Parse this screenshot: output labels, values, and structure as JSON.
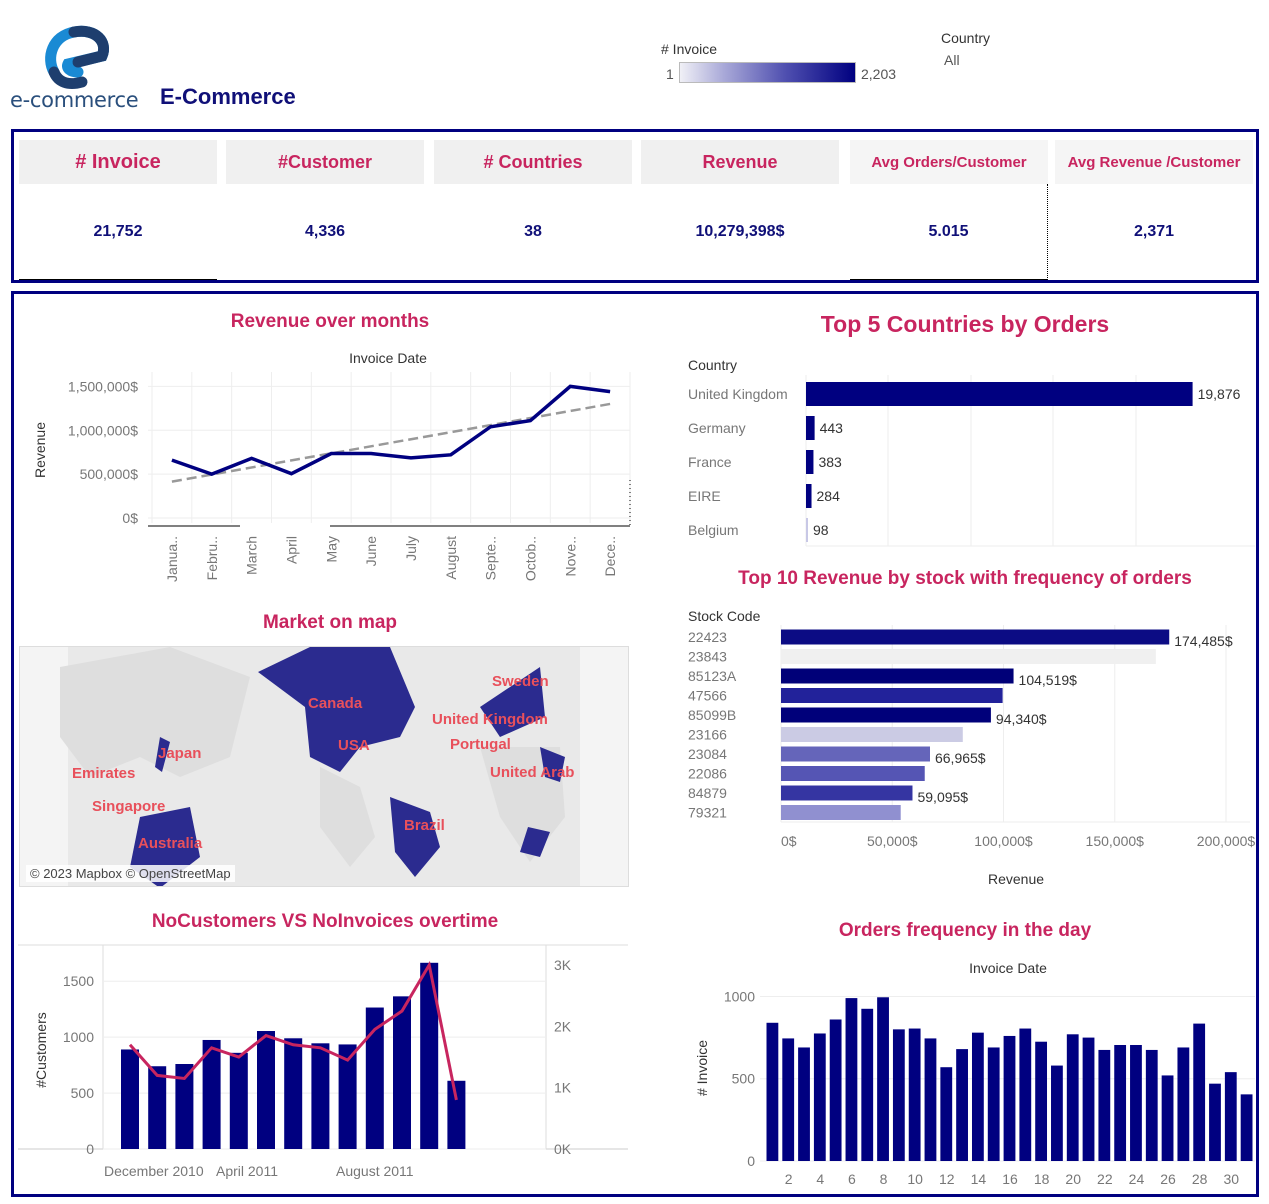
{
  "header": {
    "logo_text": "e-commerce",
    "title": "E-Commerce",
    "color_legend": {
      "title": "# Invoice",
      "min": "1",
      "max": "2,203"
    },
    "filter": {
      "title": "Country",
      "value": "All"
    }
  },
  "kpis": [
    {
      "label": "# Invoice",
      "value": "21,752"
    },
    {
      "label": "#Customer",
      "value": "4,336"
    },
    {
      "label": "# Countries",
      "value": "38"
    },
    {
      "label": "Revenue",
      "value": "10,279,398$"
    },
    {
      "label": "Avg Orders/Customer",
      "value": "5.015"
    },
    {
      "label": "Avg Revenue /Customer",
      "value": "2,371"
    }
  ],
  "colors": {
    "accent": "#c8255f",
    "navy": "#000080",
    "line": "#c8255f",
    "trend": "#999999"
  },
  "sections": {
    "revenue_title": "Revenue over months",
    "top5_title": "Top 5 Countries by Orders",
    "top10_title": "Top 10 Revenue by stock with frequency of orders",
    "map_title": "Market on map",
    "custinv_title": "NoCustomers VS NoInvoices overtime",
    "daily_title": "Orders frequency in the day"
  },
  "map": {
    "labels": [
      "Canada",
      "USA",
      "Japan",
      "Emirates",
      "Singapore",
      "Australia",
      "Brazil",
      "Sweden",
      "United Kingdom",
      "Portugal",
      "United Arab"
    ],
    "credit": "© 2023 Mapbox © OpenStreetMap"
  },
  "chart_data": [
    {
      "type": "line",
      "title": "Revenue over months",
      "xlabel": "Invoice Date",
      "ylabel": "Revenue",
      "categories": [
        "Janua..",
        "Febru..",
        "March",
        "April",
        "May",
        "June",
        "July",
        "August",
        "Septe..",
        "Octob..",
        "Nove..",
        "Dece.."
      ],
      "values": [
        660000,
        500000,
        680000,
        505000,
        735000,
        735000,
        685000,
        720000,
        1040000,
        1110000,
        1500000,
        1440000
      ],
      "trend": [
        415000,
        1300000
      ],
      "yticks": [
        "0$",
        "500,000$",
        "1,000,000$",
        "1,500,000$"
      ],
      "ylim": [
        0,
        1550000
      ]
    },
    {
      "type": "bar",
      "orientation": "horizontal",
      "title": "Top 5 Countries by Orders",
      "ylabel": "Country",
      "categories": [
        "United Kingdom",
        "Germany",
        "France",
        "EIRE",
        "Belgium"
      ],
      "values": [
        19876,
        443,
        383,
        284,
        98
      ],
      "labels": [
        "19,876",
        "443",
        "383",
        "284",
        "98"
      ],
      "xlim": [
        0,
        20000
      ]
    },
    {
      "type": "bar",
      "orientation": "horizontal",
      "title": "Top 10 Revenue by stock with frequency of orders",
      "ylabel": "Stock Code",
      "xlabel": "Revenue",
      "categories": [
        "22423",
        "23843",
        "85123A",
        "47566",
        "85099B",
        "23166",
        "23084",
        "22086",
        "84879",
        "79321"
      ],
      "values": [
        174485,
        168470,
        104519,
        99600,
        94340,
        81700,
        66965,
        64600,
        59095,
        53800
      ],
      "labels": [
        "174,485$",
        "",
        "104,519$",
        "",
        "94,340$",
        "",
        "66,965$",
        "",
        "59,095$",
        ""
      ],
      "colors": [
        "#0c0c84",
        "#f0f0f0",
        "#000078",
        "#22229a",
        "#00007a",
        "#cbcbe4",
        "#6565ba",
        "#5555b4",
        "#3535a2",
        "#9090d0"
      ],
      "xticks": [
        "0$",
        "50,000$",
        "100,000$",
        "150,000$",
        "200,000$"
      ],
      "xlim": [
        0,
        220000
      ]
    },
    {
      "type": "bar+line",
      "title": "NoCustomers VS NoInvoices overtime",
      "ylabel": "#Customers",
      "categories": [
        "Dec 2010",
        "Jan 2011",
        "Feb 2011",
        "Mar 2011",
        "Apr 2011",
        "May 2011",
        "Jun 2011",
        "Jul 2011",
        "Aug 2011",
        "Sep 2011",
        "Oct 2011",
        "Nov 2011",
        "Dec 2011"
      ],
      "xtick_labels": [
        "December 2010",
        "April 2011",
        "August 2011"
      ],
      "series": [
        {
          "name": "#Customers",
          "type": "bar",
          "axis": "left",
          "values": [
            890,
            740,
            760,
            975,
            860,
            1055,
            990,
            945,
            935,
            1265,
            1365,
            1665,
            610
          ]
        },
        {
          "name": "#Invoices",
          "type": "line",
          "axis": "right",
          "values": [
            1700,
            1200,
            1150,
            1650,
            1500,
            1850,
            1700,
            1650,
            1450,
            1950,
            2250,
            3000,
            800
          ]
        }
      ],
      "left_ticks": [
        "0",
        "500",
        "1000",
        "1500"
      ],
      "right_ticks": [
        "0K",
        "1K",
        "2K",
        "3K"
      ],
      "ylim_left": [
        0,
        1700
      ],
      "ylim_right": [
        0,
        3100
      ]
    },
    {
      "type": "bar",
      "title": "Orders frequency in the day",
      "xlabel": "Invoice Date",
      "ylabel": "# Invoice",
      "categories": [
        1,
        2,
        3,
        4,
        5,
        6,
        7,
        8,
        9,
        10,
        11,
        12,
        13,
        14,
        15,
        16,
        17,
        18,
        19,
        20,
        21,
        22,
        23,
        24,
        25,
        26,
        27,
        28,
        29,
        30,
        31
      ],
      "values": [
        840,
        745,
        690,
        775,
        860,
        990,
        925,
        995,
        800,
        805,
        745,
        570,
        680,
        780,
        690,
        760,
        805,
        725,
        580,
        770,
        750,
        675,
        705,
        705,
        675,
        520,
        690,
        835,
        470,
        540,
        405
      ],
      "xticks": [
        "2",
        "4",
        "6",
        "8",
        "10",
        "12",
        "14",
        "16",
        "18",
        "20",
        "22",
        "24",
        "26",
        "28",
        "30"
      ],
      "yticks": [
        "0",
        "500",
        "1000"
      ],
      "ylim": [
        0,
        1100
      ]
    }
  ]
}
